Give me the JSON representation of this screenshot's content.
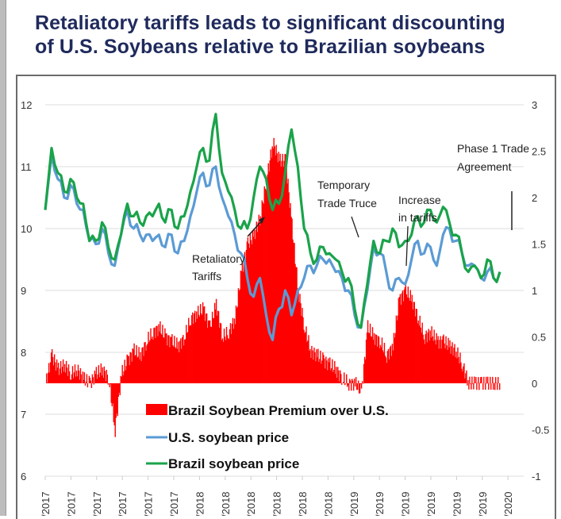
{
  "title_lines": [
    "Retaliatory tariffs leads to significant discounting",
    "of U.S. Soybeans relative to Brazilian soybeans"
  ],
  "chart_data": {
    "type": "line",
    "title": "Retaliatory tariffs leads to significant discounting of U.S. Soybeans relative to Brazilian soybeans",
    "xlabel": "",
    "ylabel": "",
    "y_left": {
      "range": [
        6,
        12
      ],
      "ticks": [
        "12",
        "11",
        "10",
        "9",
        "8",
        "7",
        "6"
      ]
    },
    "y_right": {
      "range": [
        -1,
        3
      ],
      "ticks": [
        "3",
        "2.5",
        "2",
        "1.5",
        "1",
        "0.5",
        "0",
        "-0.5",
        "-1"
      ]
    },
    "x_tick_labels": [
      "/2017",
      "/2017",
      "/2017",
      "/2017",
      "/2017",
      "/2017",
      "/2018",
      "/2018",
      "/2018",
      "/2018",
      "/2018",
      "/2018",
      "/2019",
      "/2019",
      "/2019",
      "/2019",
      "/2019",
      "/2019",
      "/2020"
    ],
    "grid": true,
    "legend_position": "bottom-center",
    "legend": [
      {
        "name": "Brazil Soybean Premium over U.S.",
        "kind": "bar",
        "color": "#ff0000",
        "axis": "right"
      },
      {
        "name": "U.S. soybean price",
        "kind": "line",
        "color": "#5b9bd5",
        "axis": "left"
      },
      {
        "name": "Brazil soybean price",
        "kind": "line",
        "color": "#1aa34a",
        "axis": "left"
      }
    ],
    "x_index_range": [
      0,
      36
    ],
    "series": [
      {
        "name": "Brazil soybean price",
        "axis": "left",
        "color": "#1aa34a",
        "x": [
          0,
          0.5,
          1,
          1.5,
          2,
          2.5,
          3,
          3.5,
          4,
          4.5,
          5,
          5.5,
          6,
          6.5,
          7,
          7.5,
          8,
          8.5,
          9,
          9.5,
          10,
          10.5,
          11,
          11.5,
          12,
          12.5,
          13,
          13.5,
          14,
          14.5,
          15,
          15.5,
          16,
          16.5,
          17,
          17.5,
          18,
          18.5,
          19,
          19.5,
          20,
          20.5,
          21,
          21.5,
          22,
          22.5,
          23,
          23.5,
          24,
          24.5,
          25,
          25.5,
          26,
          26.5,
          27,
          27.5,
          28,
          28.5,
          29,
          29.5,
          30,
          30.5,
          31,
          31.5,
          32,
          32.5,
          33,
          33.5,
          34,
          34.5,
          35,
          35.5,
          36
        ],
        "values": [
          10.3,
          11.3,
          10.9,
          10.6,
          10.8,
          10.5,
          10.4,
          9.8,
          9.8,
          10.1,
          9.7,
          9.5,
          9.9,
          10.4,
          10.2,
          10.1,
          10.2,
          10.2,
          10.4,
          10.1,
          10.3,
          10.0,
          10.2,
          10.6,
          11.0,
          11.3,
          11.1,
          11.85,
          10.9,
          10.6,
          10.3,
          10.0,
          10.0,
          10.5,
          11.0,
          10.8,
          10.3,
          10.4,
          10.9,
          11.6,
          11.0,
          10.0,
          9.6,
          9.5,
          9.7,
          9.6,
          9.5,
          9.3,
          9.2,
          8.7,
          8.4,
          9.1,
          9.8,
          9.6,
          9.8,
          10.0,
          9.7,
          9.8,
          9.9,
          10.2,
          10.1,
          10.3,
          10.1,
          10.35,
          10.1,
          9.9,
          9.6,
          9.3,
          9.4,
          9.2,
          9.5,
          9.2,
          9.3
        ]
      },
      {
        "name": "U.S. soybean price",
        "axis": "left",
        "color": "#5b9bd5",
        "x": [
          0,
          0.5,
          1,
          1.5,
          2,
          2.5,
          3,
          3.5,
          4,
          4.5,
          5,
          5.5,
          6,
          6.5,
          7,
          7.5,
          8,
          8.5,
          9,
          9.5,
          10,
          10.5,
          11,
          11.5,
          12,
          12.5,
          13,
          13.5,
          14,
          14.5,
          15,
          15.5,
          16,
          16.5,
          17,
          17.5,
          18,
          18.5,
          19,
          19.5,
          20,
          20.5,
          21,
          21.5,
          22,
          22.5,
          23,
          23.5,
          24,
          24.5,
          25,
          25.5,
          26,
          26.5,
          27,
          27.5,
          28,
          28.5,
          29,
          29.5,
          30,
          30.5,
          31,
          31.5,
          32,
          32.5,
          33,
          33.5,
          34,
          34.5,
          35,
          35.5,
          36
        ],
        "values": [
          10.3,
          11.2,
          10.8,
          10.5,
          10.7,
          10.4,
          10.3,
          9.8,
          9.75,
          10.0,
          9.6,
          9.4,
          9.9,
          10.3,
          10.0,
          9.9,
          9.9,
          9.8,
          9.9,
          9.7,
          9.9,
          9.6,
          9.8,
          10.2,
          10.6,
          10.9,
          10.7,
          11.0,
          10.5,
          10.2,
          9.9,
          9.6,
          9.2,
          8.9,
          9.2,
          8.6,
          8.2,
          8.7,
          9.0,
          8.6,
          9.0,
          9.2,
          9.4,
          9.4,
          9.5,
          9.5,
          9.3,
          9.2,
          9.0,
          8.6,
          8.4,
          9.0,
          9.7,
          9.6,
          9.3,
          9.0,
          9.2,
          9.1,
          9.5,
          9.8,
          9.6,
          9.7,
          9.4,
          9.9,
          10.0,
          9.8,
          9.6,
          9.4,
          9.4,
          9.2,
          9.3,
          9.2,
          9.3
        ]
      },
      {
        "name": "Brazil Soybean Premium over U.S.",
        "axis": "right",
        "color": "#ff0000",
        "x": [
          0,
          0.5,
          1,
          1.5,
          2,
          2.5,
          3,
          3.5,
          4,
          4.5,
          5,
          5.5,
          6,
          6.5,
          7,
          7.5,
          8,
          8.5,
          9,
          9.5,
          10,
          10.5,
          11,
          11.5,
          12,
          12.5,
          13,
          13.5,
          14,
          14.5,
          15,
          15.5,
          16,
          16.5,
          17,
          17.5,
          18,
          18.5,
          19,
          19.5,
          20,
          20.5,
          21,
          21.5,
          22,
          22.5,
          23,
          23.5,
          24,
          24.5,
          25,
          25.5,
          26,
          26.5,
          27,
          27.5,
          28,
          28.5,
          29,
          29.5,
          30,
          30.5,
          31,
          31.5,
          32,
          32.5,
          33,
          33.5,
          34,
          34.5,
          35,
          35.5,
          36
        ],
        "values": [
          0.0,
          0.3,
          0.15,
          0.2,
          0.1,
          0.15,
          0.05,
          0.0,
          0.1,
          0.15,
          0.05,
          -0.5,
          0.1,
          0.25,
          0.35,
          0.3,
          0.45,
          0.55,
          0.6,
          0.5,
          0.45,
          0.4,
          0.5,
          0.7,
          0.75,
          0.8,
          0.6,
          0.85,
          0.5,
          0.55,
          0.7,
          1.2,
          1.5,
          1.6,
          1.8,
          2.2,
          2.6,
          2.4,
          2.4,
          1.7,
          1.0,
          0.6,
          0.35,
          0.3,
          0.25,
          0.2,
          0.15,
          0.05,
          0.0,
          0.0,
          -0.1,
          0.6,
          0.5,
          0.45,
          0.3,
          0.4,
          0.9,
          1.0,
          0.9,
          0.7,
          0.5,
          0.55,
          0.45,
          0.45,
          0.4,
          0.35,
          0.2,
          0.0,
          0.0,
          0.0,
          0.0,
          0.0,
          0.0
        ]
      }
    ],
    "annotations": [
      {
        "lines": [
          "Retaliatory",
          "Tariffs"
        ]
      },
      {
        "lines": [
          "Temporary",
          "Trade Truce"
        ]
      },
      {
        "lines": [
          "Increase",
          "in tariffs"
        ]
      },
      {
        "lines": [
          "Phase 1 Trade",
          "Agreement"
        ]
      }
    ]
  }
}
